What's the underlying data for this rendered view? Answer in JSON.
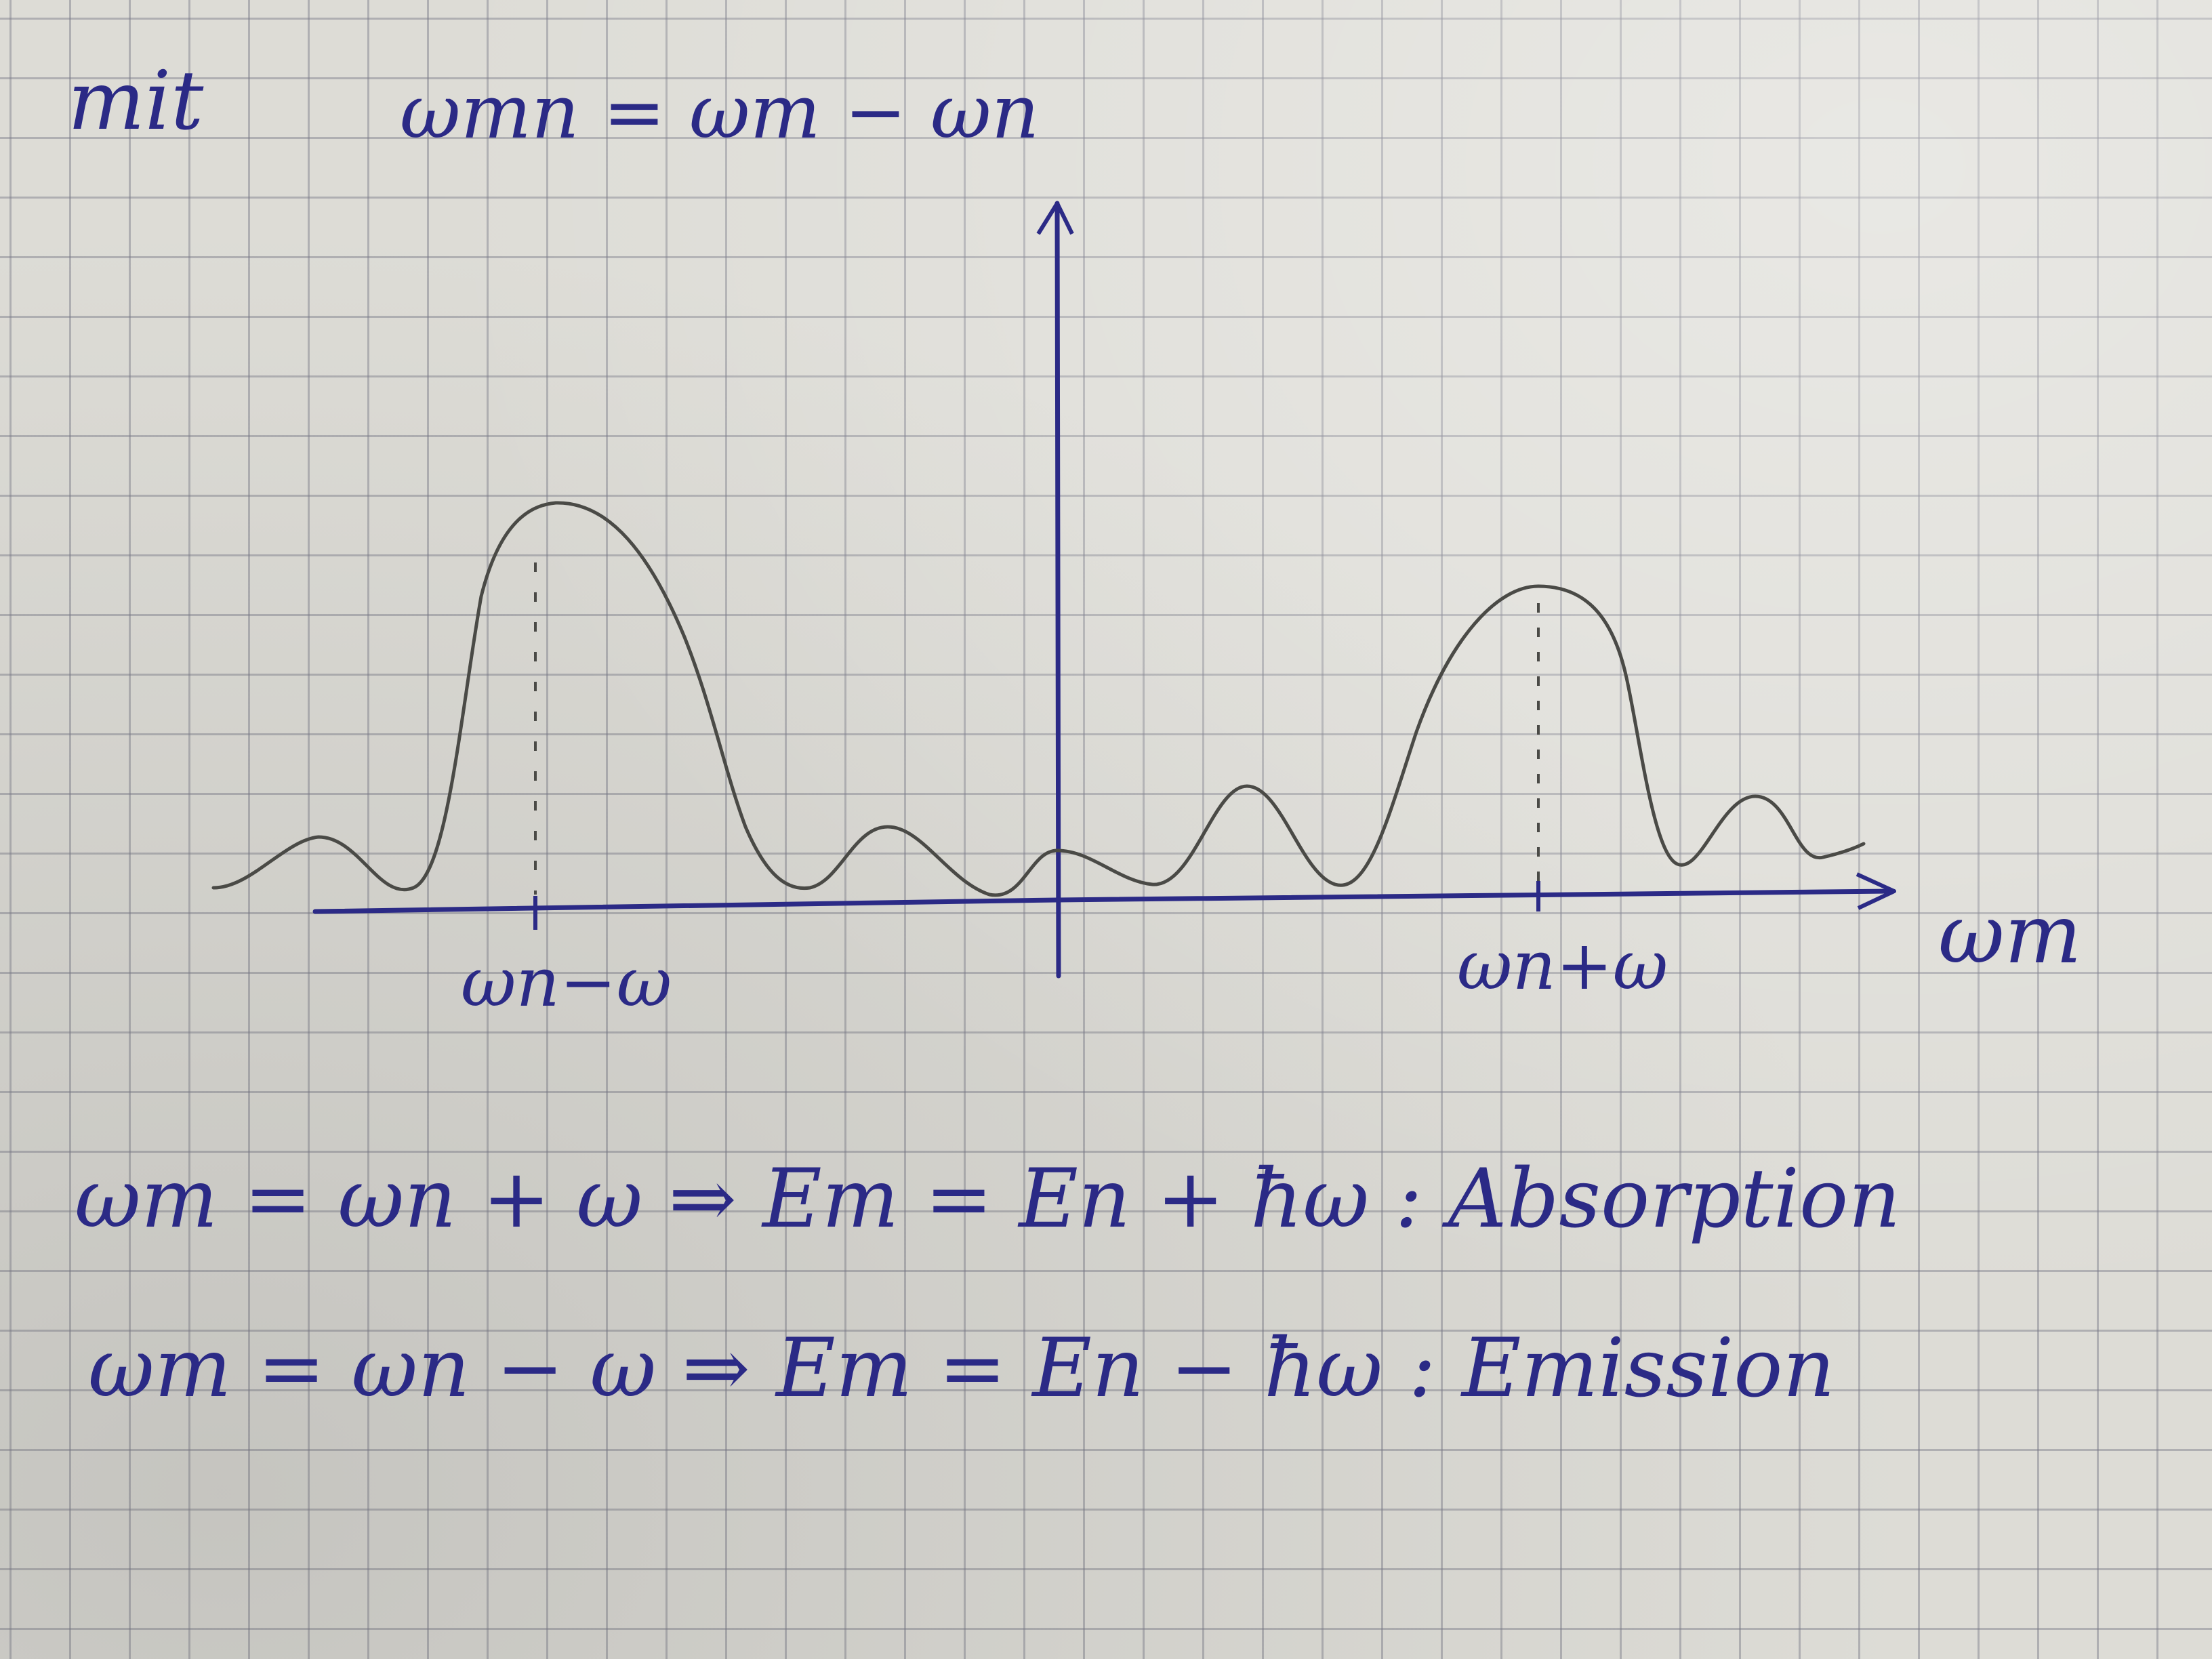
{
  "header": {
    "word": "mit",
    "definition": "ωmn = ωm − ωn"
  },
  "graph": {
    "x_axis_label": "ωm",
    "left_peak_label": "ωn−ω",
    "right_peak_label": "ωn+ω"
  },
  "equations": {
    "absorption": "ωm = ωn + ω ⇒ Em = En + ħω : Absorption",
    "emission": "ωm = ωn − ω ⇒ Em = En − ħω : Emission"
  },
  "colors": {
    "ink_blue": "#2b2a86",
    "pencil": "#4a4a46",
    "paper": "#dddcd6",
    "grid": "#787887"
  }
}
